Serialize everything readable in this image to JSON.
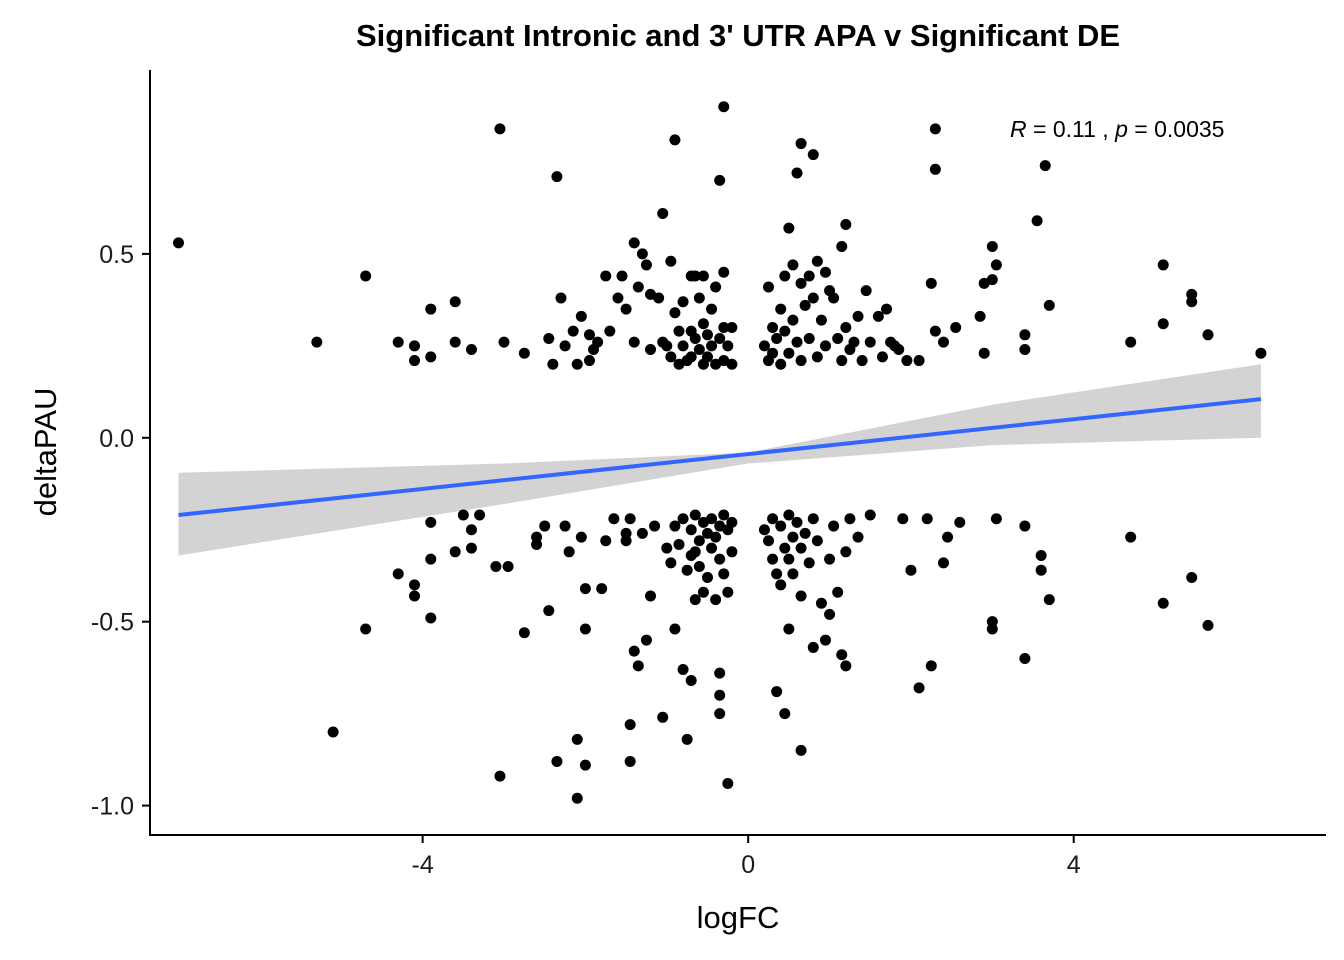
{
  "chart_data": {
    "type": "scatter",
    "title": "Significant Intronic and 3' UTR APA v Significant DE",
    "xlabel": "logFC",
    "ylabel": "deltaPAU",
    "xlim": [
      -7.35,
      7.1
    ],
    "ylim": [
      -1.08,
      1.0
    ],
    "xticks": [
      -4,
      0,
      4
    ],
    "xtick_labels": [
      "-4",
      "0",
      "4"
    ],
    "yticks": [
      0.5,
      0.0,
      -0.5,
      -1.0
    ],
    "ytick_labels": [
      "0.5",
      "0.0",
      "-0.5",
      "-1.0"
    ],
    "grid": false,
    "annotation": {
      "r_label": "R",
      "r_value": "0.11",
      "p_label": "p",
      "p_value": "0.0035"
    },
    "regression": {
      "x": [
        -7.0,
        6.3
      ],
      "y": [
        -0.21,
        0.105
      ],
      "color": "#3366ff"
    },
    "confidence_band": {
      "x": [
        -7.0,
        -3.0,
        0.0,
        3.0,
        6.3
      ],
      "upper": [
        -0.095,
        -0.07,
        -0.04,
        0.09,
        0.2
      ],
      "lower": [
        -0.32,
        -0.18,
        -0.07,
        -0.02,
        0.0
      ],
      "color": "#d3d3d3"
    },
    "point_color": "#000000",
    "points": [
      [
        -7.0,
        0.53
      ],
      [
        -5.3,
        0.26
      ],
      [
        -5.1,
        -0.8
      ],
      [
        -4.7,
        0.44
      ],
      [
        -4.7,
        -0.52
      ],
      [
        -4.3,
        0.26
      ],
      [
        -4.3,
        -0.37
      ],
      [
        -4.1,
        0.25
      ],
      [
        -4.1,
        0.21
      ],
      [
        -4.1,
        -0.4
      ],
      [
        -4.1,
        -0.43
      ],
      [
        -3.9,
        0.35
      ],
      [
        -3.9,
        0.22
      ],
      [
        -3.9,
        -0.23
      ],
      [
        -3.9,
        -0.33
      ],
      [
        -3.9,
        -0.49
      ],
      [
        -3.6,
        0.37
      ],
      [
        -3.6,
        0.26
      ],
      [
        -3.6,
        -0.31
      ],
      [
        -3.5,
        -0.21
      ],
      [
        -3.4,
        0.24
      ],
      [
        -3.4,
        -0.25
      ],
      [
        -3.4,
        -0.3
      ],
      [
        -3.3,
        -0.21
      ],
      [
        -3.1,
        -0.35
      ],
      [
        -3.05,
        0.84
      ],
      [
        -3.05,
        -0.92
      ],
      [
        -3.0,
        0.26
      ],
      [
        -2.95,
        -0.35
      ],
      [
        -2.75,
        0.23
      ],
      [
        -2.75,
        -0.53
      ],
      [
        -2.6,
        -0.29
      ],
      [
        -2.6,
        -0.27
      ],
      [
        -2.5,
        -0.24
      ],
      [
        -2.45,
        0.27
      ],
      [
        -2.45,
        -0.47
      ],
      [
        -2.4,
        0.2
      ],
      [
        -2.35,
        0.71
      ],
      [
        -2.35,
        -0.88
      ],
      [
        -2.3,
        0.38
      ],
      [
        -2.25,
        0.25
      ],
      [
        -2.25,
        -0.24
      ],
      [
        -2.2,
        -0.31
      ],
      [
        -2.15,
        0.29
      ],
      [
        -2.1,
        0.2
      ],
      [
        -2.1,
        -0.82
      ],
      [
        -2.1,
        -0.98
      ],
      [
        -2.05,
        0.33
      ],
      [
        -2.05,
        -0.27
      ],
      [
        -2.0,
        -0.89
      ],
      [
        -2.0,
        -0.41
      ],
      [
        -2.0,
        -0.52
      ],
      [
        -1.95,
        0.21
      ],
      [
        -1.95,
        0.28
      ],
      [
        -1.9,
        0.24
      ],
      [
        -1.85,
        0.26
      ],
      [
        -1.8,
        -0.41
      ],
      [
        -1.75,
        0.44
      ],
      [
        -1.75,
        -0.28
      ],
      [
        -1.7,
        0.29
      ],
      [
        -1.65,
        -0.22
      ],
      [
        -1.6,
        0.38
      ],
      [
        -1.55,
        0.44
      ],
      [
        -1.5,
        0.35
      ],
      [
        -1.5,
        -0.28
      ],
      [
        -1.5,
        -0.26
      ],
      [
        -1.45,
        -0.22
      ],
      [
        -1.45,
        -0.78
      ],
      [
        -1.45,
        -0.88
      ],
      [
        -1.4,
        0.53
      ],
      [
        -1.4,
        0.26
      ],
      [
        -1.4,
        -0.58
      ],
      [
        -1.35,
        0.41
      ],
      [
        -1.35,
        -0.62
      ],
      [
        -1.3,
        0.5
      ],
      [
        -1.3,
        -0.26
      ],
      [
        -1.25,
        0.47
      ],
      [
        -1.25,
        -0.55
      ],
      [
        -1.2,
        0.39
      ],
      [
        -1.2,
        0.24
      ],
      [
        -1.2,
        -0.43
      ],
      [
        -1.15,
        -0.24
      ],
      [
        -1.1,
        0.38
      ],
      [
        -1.05,
        0.61
      ],
      [
        -1.05,
        0.26
      ],
      [
        -1.05,
        -0.76
      ],
      [
        -1.0,
        0.25
      ],
      [
        -1.0,
        -0.3
      ],
      [
        -0.95,
        0.48
      ],
      [
        -0.95,
        0.22
      ],
      [
        -0.95,
        -0.34
      ],
      [
        -0.9,
        0.81
      ],
      [
        -0.9,
        0.34
      ],
      [
        -0.9,
        -0.24
      ],
      [
        -0.9,
        -0.52
      ],
      [
        -0.85,
        0.29
      ],
      [
        -0.85,
        0.2
      ],
      [
        -0.85,
        -0.29
      ],
      [
        -0.8,
        0.37
      ],
      [
        -0.8,
        0.25
      ],
      [
        -0.8,
        -0.22
      ],
      [
        -0.8,
        -0.63
      ],
      [
        -0.75,
        0.21
      ],
      [
        -0.75,
        -0.36
      ],
      [
        -0.75,
        -0.82
      ],
      [
        -0.7,
        0.44
      ],
      [
        -0.7,
        0.29
      ],
      [
        -0.7,
        0.22
      ],
      [
        -0.7,
        -0.25
      ],
      [
        -0.7,
        -0.32
      ],
      [
        -0.7,
        -0.66
      ],
      [
        -0.65,
        0.44
      ],
      [
        -0.65,
        0.27
      ],
      [
        -0.65,
        -0.21
      ],
      [
        -0.65,
        -0.31
      ],
      [
        -0.65,
        -0.44
      ],
      [
        -0.6,
        0.38
      ],
      [
        -0.6,
        0.24
      ],
      [
        -0.6,
        -0.28
      ],
      [
        -0.6,
        -0.35
      ],
      [
        -0.55,
        0.44
      ],
      [
        -0.55,
        0.31
      ],
      [
        -0.55,
        0.2
      ],
      [
        -0.55,
        -0.23
      ],
      [
        -0.55,
        -0.42
      ],
      [
        -0.5,
        0.28
      ],
      [
        -0.5,
        0.22
      ],
      [
        -0.5,
        -0.26
      ],
      [
        -0.5,
        -0.38
      ],
      [
        -0.45,
        0.35
      ],
      [
        -0.45,
        0.25
      ],
      [
        -0.45,
        -0.22
      ],
      [
        -0.45,
        -0.3
      ],
      [
        -0.4,
        0.41
      ],
      [
        -0.4,
        0.2
      ],
      [
        -0.4,
        -0.27
      ],
      [
        -0.4,
        -0.44
      ],
      [
        -0.35,
        0.7
      ],
      [
        -0.35,
        0.27
      ],
      [
        -0.35,
        -0.24
      ],
      [
        -0.35,
        -0.33
      ],
      [
        -0.35,
        -0.64
      ],
      [
        -0.35,
        -0.7
      ],
      [
        -0.35,
        -0.75
      ],
      [
        -0.3,
        0.9
      ],
      [
        -0.3,
        0.45
      ],
      [
        -0.3,
        0.3
      ],
      [
        -0.3,
        0.21
      ],
      [
        -0.3,
        -0.21
      ],
      [
        -0.3,
        -0.37
      ],
      [
        -0.25,
        0.25
      ],
      [
        -0.25,
        -0.25
      ],
      [
        -0.25,
        -0.42
      ],
      [
        -0.25,
        -0.94
      ],
      [
        -0.2,
        0.3
      ],
      [
        -0.2,
        0.2
      ],
      [
        -0.2,
        -0.23
      ],
      [
        -0.2,
        -0.31
      ],
      [
        0.2,
        0.25
      ],
      [
        0.2,
        -0.25
      ],
      [
        0.25,
        0.41
      ],
      [
        0.25,
        0.21
      ],
      [
        0.25,
        -0.28
      ],
      [
        0.3,
        0.3
      ],
      [
        0.3,
        0.23
      ],
      [
        0.3,
        -0.22
      ],
      [
        0.3,
        -0.33
      ],
      [
        0.35,
        0.27
      ],
      [
        0.35,
        -0.37
      ],
      [
        0.35,
        -0.69
      ],
      [
        0.4,
        0.35
      ],
      [
        0.4,
        0.2
      ],
      [
        0.4,
        -0.24
      ],
      [
        0.4,
        -0.4
      ],
      [
        0.45,
        0.44
      ],
      [
        0.45,
        0.29
      ],
      [
        0.45,
        -0.3
      ],
      [
        0.45,
        -0.75
      ],
      [
        0.5,
        0.57
      ],
      [
        0.5,
        0.23
      ],
      [
        0.5,
        -0.21
      ],
      [
        0.5,
        -0.33
      ],
      [
        0.5,
        -0.52
      ],
      [
        0.55,
        0.47
      ],
      [
        0.55,
        0.32
      ],
      [
        0.55,
        -0.27
      ],
      [
        0.55,
        -0.37
      ],
      [
        0.6,
        0.72
      ],
      [
        0.6,
        0.26
      ],
      [
        0.6,
        -0.23
      ],
      [
        0.65,
        0.8
      ],
      [
        0.65,
        0.42
      ],
      [
        0.65,
        0.21
      ],
      [
        0.65,
        -0.3
      ],
      [
        0.65,
        -0.43
      ],
      [
        0.65,
        -0.85
      ],
      [
        0.7,
        0.36
      ],
      [
        0.7,
        -0.26
      ],
      [
        0.75,
        0.44
      ],
      [
        0.75,
        0.27
      ],
      [
        0.75,
        -0.34
      ],
      [
        0.8,
        0.77
      ],
      [
        0.8,
        0.38
      ],
      [
        0.8,
        -0.22
      ],
      [
        0.8,
        -0.57
      ],
      [
        0.85,
        0.48
      ],
      [
        0.85,
        0.22
      ],
      [
        0.85,
        -0.28
      ],
      [
        0.9,
        0.32
      ],
      [
        0.9,
        -0.45
      ],
      [
        0.95,
        0.45
      ],
      [
        0.95,
        0.25
      ],
      [
        0.95,
        -0.55
      ],
      [
        1.0,
        0.4
      ],
      [
        1.0,
        -0.33
      ],
      [
        1.0,
        -0.48
      ],
      [
        1.05,
        0.38
      ],
      [
        1.05,
        -0.24
      ],
      [
        1.1,
        0.27
      ],
      [
        1.1,
        -0.42
      ],
      [
        1.15,
        0.52
      ],
      [
        1.15,
        0.21
      ],
      [
        1.15,
        -0.59
      ],
      [
        1.2,
        0.58
      ],
      [
        1.2,
        0.3
      ],
      [
        1.2,
        -0.31
      ],
      [
        1.2,
        -0.62
      ],
      [
        1.25,
        0.24
      ],
      [
        1.25,
        -0.22
      ],
      [
        1.3,
        0.26
      ],
      [
        1.35,
        0.33
      ],
      [
        1.35,
        -0.27
      ],
      [
        1.4,
        0.21
      ],
      [
        1.45,
        0.4
      ],
      [
        1.5,
        0.26
      ],
      [
        1.5,
        -0.21
      ],
      [
        1.6,
        0.33
      ],
      [
        1.65,
        0.22
      ],
      [
        1.7,
        0.35
      ],
      [
        1.75,
        0.26
      ],
      [
        1.8,
        0.25
      ],
      [
        1.85,
        0.24
      ],
      [
        1.9,
        -0.22
      ],
      [
        1.95,
        0.21
      ],
      [
        2.0,
        -0.36
      ],
      [
        2.1,
        -0.68
      ],
      [
        2.1,
        0.21
      ],
      [
        2.2,
        -0.22
      ],
      [
        2.25,
        0.42
      ],
      [
        2.25,
        -0.62
      ],
      [
        2.3,
        0.29
      ],
      [
        2.3,
        0.73
      ],
      [
        2.3,
        0.84
      ],
      [
        2.4,
        0.26
      ],
      [
        2.4,
        -0.34
      ],
      [
        2.45,
        -0.27
      ],
      [
        2.55,
        0.3
      ],
      [
        2.6,
        -0.23
      ],
      [
        2.85,
        0.33
      ],
      [
        2.9,
        0.42
      ],
      [
        2.9,
        0.23
      ],
      [
        3.0,
        0.52
      ],
      [
        3.0,
        0.43
      ],
      [
        3.0,
        -0.5
      ],
      [
        3.0,
        -0.52
      ],
      [
        3.05,
        0.47
      ],
      [
        3.05,
        -0.22
      ],
      [
        3.4,
        0.24
      ],
      [
        3.4,
        0.28
      ],
      [
        3.4,
        -0.24
      ],
      [
        3.4,
        -0.6
      ],
      [
        3.55,
        0.59
      ],
      [
        3.6,
        -0.32
      ],
      [
        3.6,
        -0.36
      ],
      [
        3.65,
        0.74
      ],
      [
        3.7,
        0.36
      ],
      [
        3.7,
        -0.44
      ],
      [
        4.7,
        0.26
      ],
      [
        4.7,
        -0.27
      ],
      [
        5.1,
        0.47
      ],
      [
        5.1,
        0.31
      ],
      [
        5.1,
        -0.45
      ],
      [
        5.45,
        0.39
      ],
      [
        5.45,
        0.37
      ],
      [
        5.45,
        -0.38
      ],
      [
        5.65,
        0.28
      ],
      [
        5.65,
        -0.51
      ],
      [
        6.3,
        0.23
      ]
    ]
  }
}
